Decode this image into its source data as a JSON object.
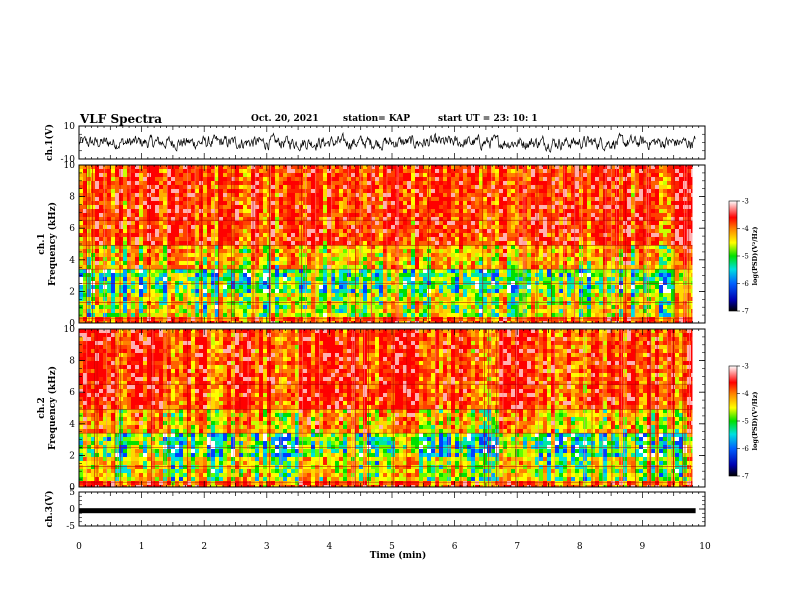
{
  "header": {
    "title": "VLF Spectra",
    "date": "Oct. 20, 2021",
    "station": "station= KAP",
    "start_ut": "start  UT =   23: 10: 1"
  },
  "chart_data": [
    {
      "type": "line",
      "panel": "waveform-ch1",
      "ylabel": "ch.1(V)",
      "ylim": [
        -10,
        10
      ],
      "yticks": [
        -10,
        10
      ],
      "xlim": [
        0,
        10
      ],
      "trace": "noise",
      "amplitude_range": [
        -6,
        6
      ]
    },
    {
      "type": "heatmap",
      "panel": "spectrogram-ch1",
      "ylabel": "ch.1 Frequency (kHz)",
      "ylim": [
        0,
        10
      ],
      "yticks": [
        0,
        2,
        4,
        6,
        8,
        10
      ],
      "xlim": [
        0,
        9.8
      ],
      "colorbar": {
        "label": "log(PSD)(V²/Hz)",
        "range": [
          -7,
          -3
        ],
        "ticks": [
          -3,
          -4,
          -5,
          -6,
          -7
        ]
      }
    },
    {
      "type": "heatmap",
      "panel": "spectrogram-ch2",
      "ylabel": "ch.2 Frequency (kHz)",
      "ylim": [
        0,
        10
      ],
      "yticks": [
        0,
        2,
        4,
        6,
        8,
        10
      ],
      "xlim": [
        0,
        9.8
      ],
      "colorbar": {
        "label": "log(PSD)(V²/Hz)",
        "range": [
          -7,
          -3
        ],
        "ticks": [
          -3,
          -4,
          -5,
          -6,
          -7
        ]
      }
    },
    {
      "type": "line",
      "panel": "waveform-ch3",
      "ylabel": "ch.3(V)",
      "ylim": [
        -5,
        5
      ],
      "yticks": [
        -5,
        0,
        5
      ],
      "xlim": [
        0,
        10
      ],
      "trace": "constant",
      "value": -0.5
    }
  ],
  "xaxis": {
    "label": "Time (min)",
    "range": [
      0,
      10
    ],
    "ticks": [
      0,
      1,
      2,
      3,
      4,
      5,
      6,
      7,
      8,
      9,
      10
    ]
  }
}
